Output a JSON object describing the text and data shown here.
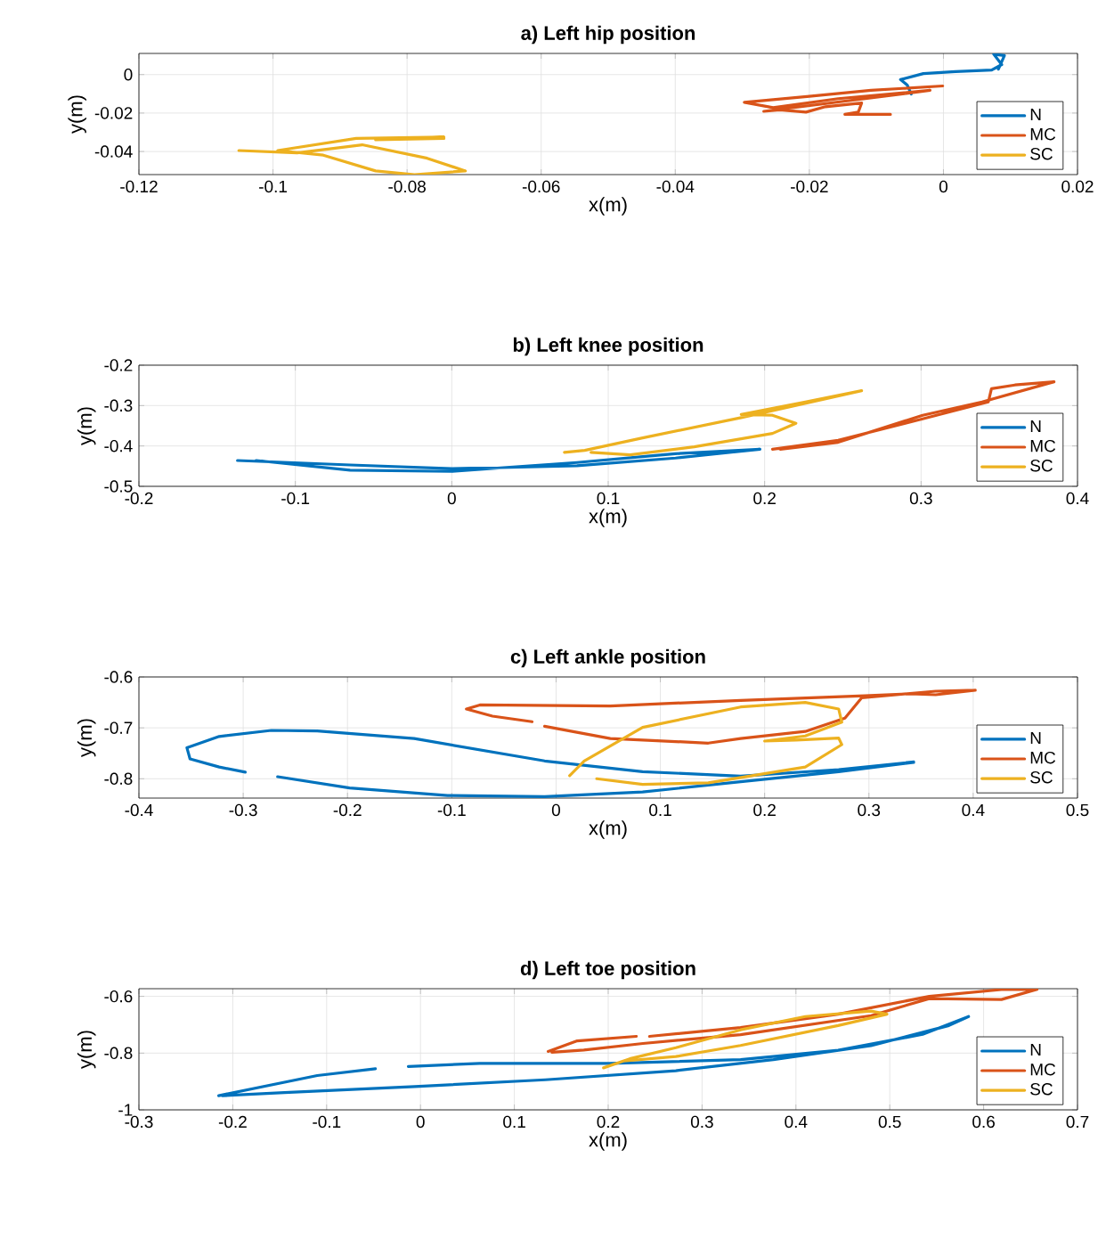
{
  "chart_data": [
    {
      "type": "line",
      "title": "a) Left hip position",
      "xlabel": "x(m)",
      "ylabel": "y(m)",
      "xlim": [
        -0.12,
        0.02
      ],
      "ylim": [
        -0.052,
        0.011
      ],
      "xticks": [
        -0.12,
        -0.1,
        -0.08,
        -0.06,
        -0.04,
        -0.02,
        0,
        0.02
      ],
      "yticks": [
        -0.04,
        -0.02,
        0
      ],
      "grid": true,
      "legend": "bottom right",
      "series": [
        {
          "name": "N",
          "color": "#0072bd",
          "x": [
            -0.0048,
            -0.0054,
            -0.0064,
            -0.003,
            0.0018,
            0.0072,
            0.0087,
            0.0075,
            0.0091,
            0.0082
          ],
          "values": [
            -0.0101,
            -0.0054,
            -0.0026,
            0.0005,
            0.0016,
            0.0024,
            0.0052,
            0.0106,
            0.0099,
            0.0028
          ]
        },
        {
          "name": "MC",
          "color": "#d95319",
          "x": [
            -0.0001,
            -0.0108,
            -0.02,
            -0.0297,
            -0.0254,
            -0.0157,
            -0.002,
            -0.0268,
            -0.0244,
            -0.0205,
            -0.0176,
            -0.0122,
            -0.0127,
            -0.0147,
            -0.0079
          ],
          "values": [
            -0.0059,
            -0.0082,
            -0.0113,
            -0.0144,
            -0.0172,
            -0.0125,
            -0.0082,
            -0.0191,
            -0.0184,
            -0.0195,
            -0.0167,
            -0.0148,
            -0.0195,
            -0.0207,
            -0.0207
          ]
        },
        {
          "name": "SC",
          "color": "#edb120",
          "x": [
            -0.1051,
            -0.0964,
            -0.0867,
            -0.077,
            -0.0713,
            -0.0789,
            -0.0847,
            -0.0925,
            -0.0993,
            -0.0876,
            -0.0745,
            -0.0847,
            -0.0745
          ],
          "values": [
            -0.0395,
            -0.0407,
            -0.0365,
            -0.0435,
            -0.0501,
            -0.052,
            -0.0501,
            -0.0419,
            -0.0395,
            -0.0332,
            -0.0325,
            -0.0339,
            -0.0332
          ]
        }
      ]
    },
    {
      "type": "line",
      "title": "b) Left knee position",
      "xlabel": "x(m)",
      "ylabel": "y(m)",
      "xlim": [
        -0.2,
        0.4
      ],
      "ylim": [
        -0.5,
        -0.2
      ],
      "xticks": [
        -0.2,
        -0.1,
        0,
        0.1,
        0.2,
        0.3,
        0.4
      ],
      "yticks": [
        -0.5,
        -0.4,
        -0.3,
        -0.2
      ],
      "grid": true,
      "legend": "bottom right",
      "series": [
        {
          "name": "N",
          "color": "#0072bd",
          "x": [
            -0.137,
            -0.065,
            0,
            0.08,
            0.143,
            0.197,
            0.143,
            0.08,
            0,
            -0.065,
            -0.125
          ],
          "values": [
            -0.436,
            -0.447,
            -0.456,
            -0.449,
            -0.43,
            -0.408,
            -0.419,
            -0.441,
            -0.463,
            -0.46,
            -0.436
          ]
        },
        {
          "name": "MC",
          "color": "#d95319",
          "x": [
            0.205,
            0.247,
            0.301,
            0.343,
            0.345,
            0.36,
            0.385,
            0.339,
            0.301,
            0.247,
            0.21
          ],
          "values": [
            -0.408,
            -0.386,
            -0.333,
            -0.291,
            -0.258,
            -0.249,
            -0.241,
            -0.291,
            -0.324,
            -0.391,
            -0.408
          ]
        },
        {
          "name": "SC",
          "color": "#edb120",
          "x": [
            0.072,
            0.085,
            0.122,
            0.185,
            0.262,
            0.226,
            0.185,
            0.205,
            0.22,
            0.205,
            0.155,
            0.114,
            0.089
          ],
          "values": [
            -0.416,
            -0.411,
            -0.38,
            -0.33,
            -0.263,
            -0.291,
            -0.322,
            -0.324,
            -0.344,
            -0.369,
            -0.402,
            -0.422,
            -0.416
          ]
        }
      ]
    },
    {
      "type": "line",
      "title": "c) Left ankle position",
      "xlabel": "x(m)",
      "ylabel": "y(m)",
      "xlim": [
        -0.4,
        0.5
      ],
      "ylim": [
        -0.838,
        -0.6
      ],
      "xticks": [
        -0.4,
        -0.3,
        -0.2,
        -0.1,
        0,
        0.1,
        0.2,
        0.3,
        0.4,
        0.5
      ],
      "yticks": [
        -0.8,
        -0.7,
        -0.6
      ],
      "grid": true,
      "legend": "bottom right",
      "series": [
        {
          "name": "N",
          "color": "#0072bd",
          "x": [
            0.343,
            0.271,
            0.177,
            0.083,
            -0.011,
            -0.136,
            -0.229,
            -0.273,
            -0.323,
            -0.354,
            -0.351,
            -0.323,
            -0.298,
            null,
            -0.267,
            -0.198,
            -0.104,
            -0.011,
            0.083,
            0.177,
            0.271,
            0.343
          ],
          "values": [
            -0.767,
            -0.782,
            -0.795,
            -0.786,
            -0.765,
            -0.721,
            -0.706,
            -0.705,
            -0.717,
            -0.739,
            -0.761,
            -0.777,
            -0.787,
            null,
            -0.796,
            -0.818,
            -0.833,
            -0.835,
            -0.826,
            -0.806,
            -0.786,
            -0.768
          ]
        },
        {
          "name": "MC",
          "color": "#d95319",
          "x": [
            0.402,
            0.364,
            0.339,
            0.296,
            0.177,
            0.052,
            -0.073,
            -0.086,
            -0.061,
            -0.023,
            null,
            -0.011,
            0.052,
            0.146,
            0.177,
            0.239,
            0.277,
            0.293,
            0.364,
            0.402
          ],
          "values": [
            -0.626,
            -0.635,
            -0.633,
            -0.637,
            -0.646,
            -0.657,
            -0.655,
            -0.663,
            -0.677,
            -0.688,
            null,
            -0.697,
            -0.721,
            -0.73,
            -0.721,
            -0.707,
            -0.681,
            -0.641,
            -0.628,
            -0.626
          ]
        },
        {
          "name": "SC",
          "color": "#edb120",
          "x": [
            0.013,
            0.027,
            0.083,
            0.177,
            0.239,
            0.271,
            0.274,
            0.239,
            0.2,
            0.23,
            0.271,
            0.274,
            0.239,
            0.146,
            0.083,
            0.039
          ],
          "values": [
            -0.794,
            -0.765,
            -0.699,
            -0.659,
            -0.65,
            -0.663,
            -0.689,
            -0.716,
            -0.726,
            -0.724,
            -0.72,
            -0.733,
            -0.777,
            -0.808,
            -0.811,
            -0.8
          ]
        }
      ]
    },
    {
      "type": "line",
      "title": "d) Left toe position",
      "xlabel": "x(m)",
      "ylabel": "y(m)",
      "xlim": [
        -0.3,
        0.7
      ],
      "ylim": [
        -1,
        -0.573
      ],
      "xticks": [
        -0.3,
        -0.2,
        -0.1,
        0,
        0.1,
        0.2,
        0.3,
        0.4,
        0.5,
        0.6,
        0.7
      ],
      "yticks": [
        -1,
        -0.8,
        -0.6
      ],
      "grid": true,
      "legend": "bottom right",
      "series": [
        {
          "name": "N",
          "color": "#0072bd",
          "x": [
            -0.215,
            -0.11,
            -0.048,
            null,
            -0.013,
            0.063,
            0.202,
            0.341,
            0.445,
            0.535,
            0.584,
            0.563,
            0.48,
            0.376,
            0.272,
            0.133,
            -0.006,
            -0.145,
            -0.211
          ],
          "values": [
            -0.95,
            -0.879,
            -0.855,
            null,
            -0.847,
            -0.836,
            -0.836,
            -0.823,
            -0.79,
            -0.734,
            -0.671,
            -0.703,
            -0.774,
            -0.823,
            -0.862,
            -0.894,
            -0.918,
            -0.939,
            -0.95
          ]
        },
        {
          "name": "MC",
          "color": "#d95319",
          "x": [
            0.136,
            0.167,
            0.23,
            null,
            0.244,
            0.341,
            0.445,
            0.542,
            0.619,
            0.657,
            0.619,
            0.542,
            0.48,
            0.341,
            0.237,
            0.174,
            0.14
          ],
          "values": [
            -0.794,
            -0.757,
            -0.741,
            null,
            -0.741,
            -0.71,
            -0.663,
            -0.6,
            -0.576,
            -0.575,
            -0.611,
            -0.608,
            -0.668,
            -0.735,
            -0.766,
            -0.789,
            -0.797
          ]
        },
        {
          "name": "SC",
          "color": "#edb120",
          "x": [
            0.195,
            0.223,
            0.272,
            0.341,
            0.41,
            0.48,
            0.497,
            0.445,
            0.341,
            0.272,
            0.216
          ],
          "values": [
            -0.852,
            -0.82,
            -0.781,
            -0.718,
            -0.671,
            -0.652,
            -0.663,
            -0.703,
            -0.773,
            -0.812,
            -0.828
          ]
        }
      ]
    }
  ]
}
